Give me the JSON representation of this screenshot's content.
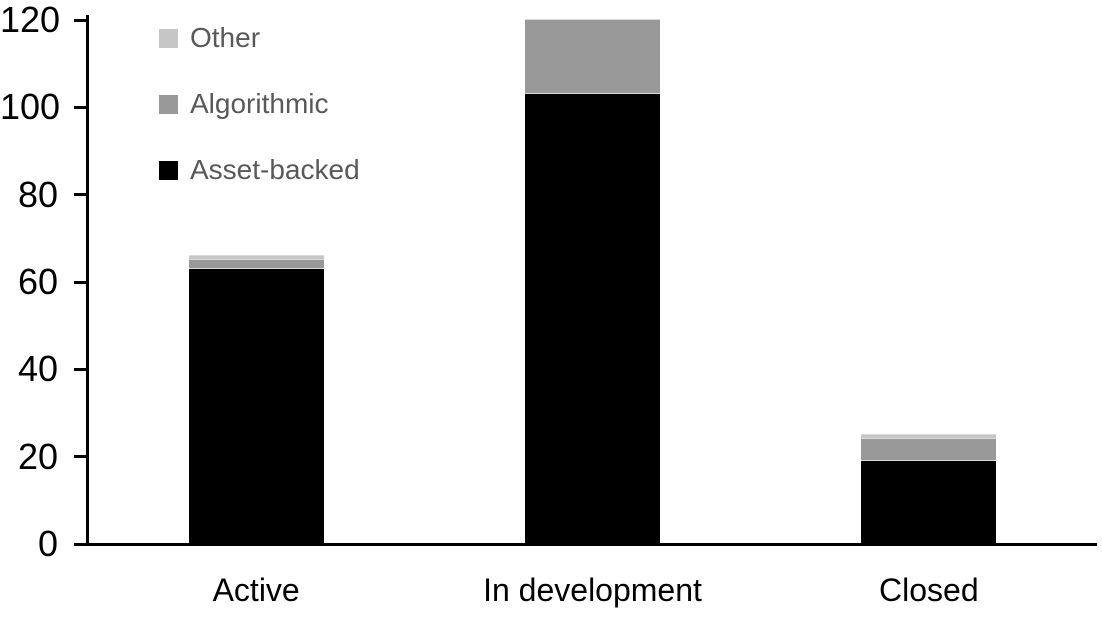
{
  "chart_data": {
    "type": "bar",
    "stacked": true,
    "title": "",
    "xlabel": "",
    "ylabel": "",
    "categories": [
      "Active",
      "In development",
      "Closed"
    ],
    "series": [
      {
        "name": "Other",
        "color": "#c6c6c6",
        "values": [
          1,
          0,
          1
        ]
      },
      {
        "name": "Algorithmic",
        "color": "#999999",
        "values": [
          2,
          17,
          5
        ]
      },
      {
        "name": "Asset-backed",
        "color": "#000000",
        "values": [
          63,
          103,
          19
        ]
      }
    ],
    "totals": [
      66,
      120,
      25
    ],
    "ylim": [
      0,
      120
    ],
    "yticks": [
      0,
      20,
      40,
      60,
      80,
      100,
      120
    ],
    "grid": false,
    "legend_position": "top-left",
    "axis_color": "#000000",
    "tick_label_color": "#000000",
    "legend_text_color": "#595959",
    "background_color": "#ffffff"
  }
}
